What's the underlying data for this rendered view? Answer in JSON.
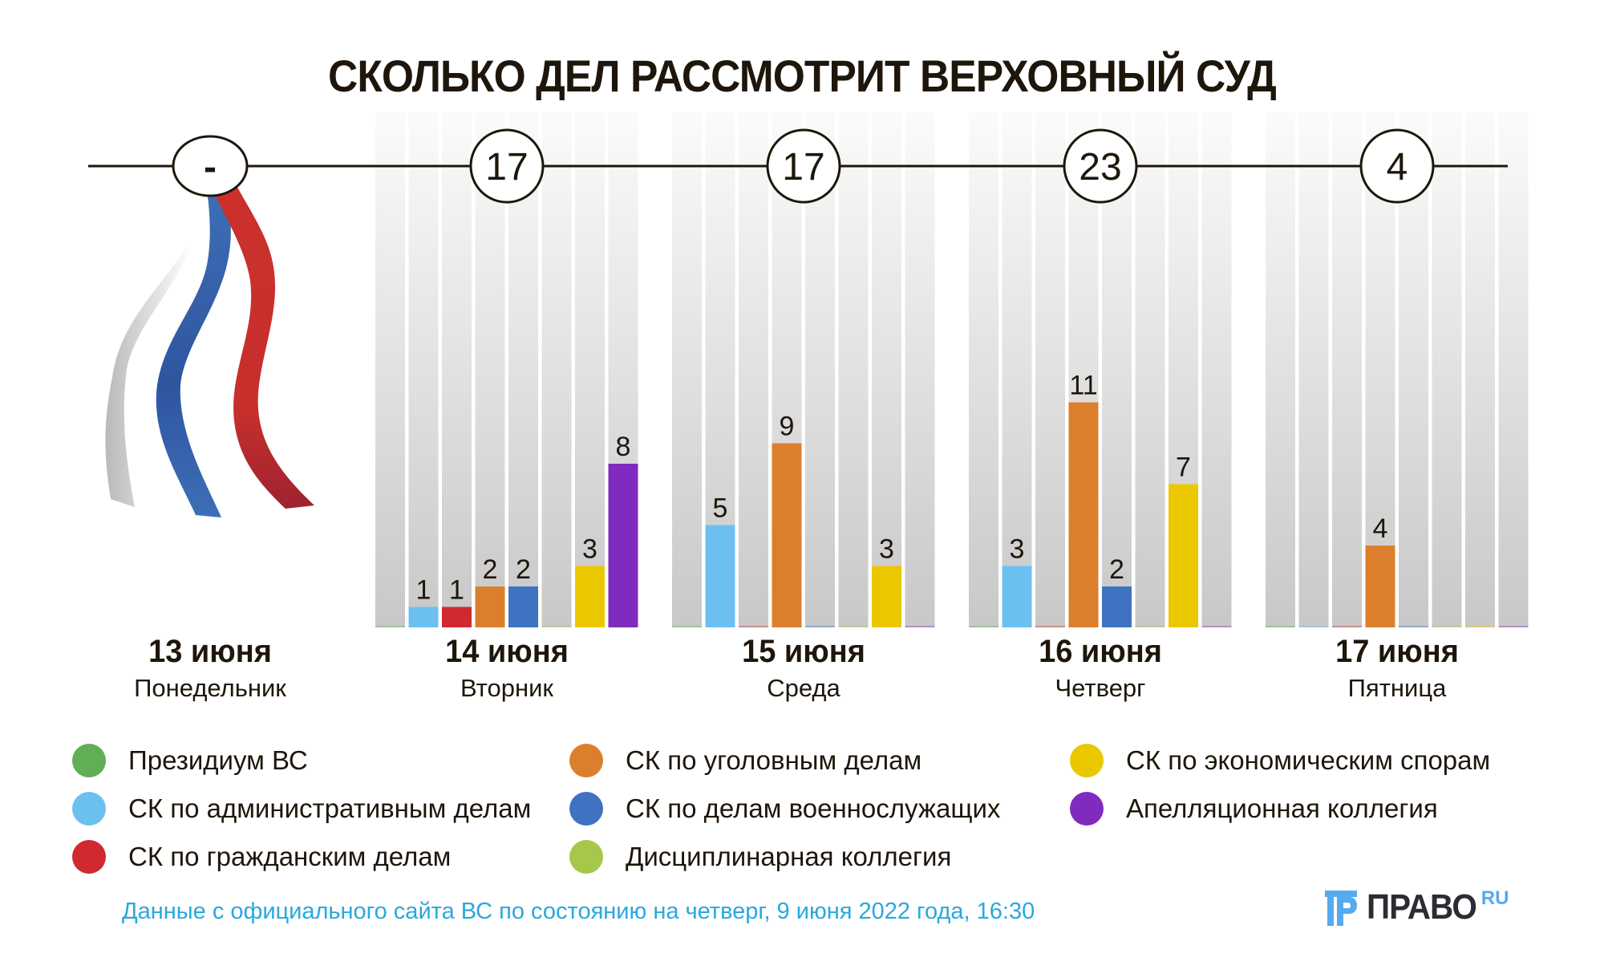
{
  "title": "СКОЛЬКО ДЕЛ РАССМОТРИТ ВЕРХОВНЫЙ СУД",
  "days": [
    {
      "date": "13 июня",
      "weekday": "Понедельник",
      "total": "-"
    },
    {
      "date": "14 июня",
      "weekday": "Вторник",
      "total": "17"
    },
    {
      "date": "15 июня",
      "weekday": "Среда",
      "total": "17"
    },
    {
      "date": "16 июня",
      "weekday": "Четверг",
      "total": "23"
    },
    {
      "date": "17 июня",
      "weekday": "Пятница",
      "total": "4"
    }
  ],
  "legend": [
    {
      "label": "Президиум ВС",
      "color": "#62ae57"
    },
    {
      "label": "СК по административным делам",
      "color": "#6cc0f0"
    },
    {
      "label": "СК по гражданским делам",
      "color": "#d0292f"
    },
    {
      "label": "СК по уголовным делам",
      "color": "#dc7f2d"
    },
    {
      "label": "СК по делам военнослужащих",
      "color": "#3f72c0"
    },
    {
      "label": "Дисциплинарная коллегия",
      "color": "#a6c84a"
    },
    {
      "label": "СК по экономическим спорам",
      "color": "#ebc700"
    },
    {
      "label": "Апелляционная коллегия",
      "color": "#7f2bbf"
    }
  ],
  "footer_note": "Данные с официального сайта ВС по состоянию на четверг, 9 июня 2022 года, 16:30",
  "logo": {
    "text": "ПРАВО",
    "suffix": "RU"
  },
  "chart_data": {
    "type": "bar",
    "title": "СКОЛЬКО ДЕЛ РАССМОТРИТ ВЕРХОВНЫЙ СУД",
    "xlabel": "",
    "ylabel": "",
    "ylim": [
      0,
      18
    ],
    "grid": false,
    "legend_position": "bottom",
    "categories": [
      "14 июня",
      "15 июня",
      "16 июня",
      "17 июня"
    ],
    "totals": [
      17,
      17,
      23,
      4
    ],
    "series": [
      {
        "name": "Президиум ВС",
        "values": [
          0,
          0,
          0,
          0
        ]
      },
      {
        "name": "СК по административным делам",
        "values": [
          1,
          5,
          3,
          0
        ]
      },
      {
        "name": "СК по гражданским делам",
        "values": [
          1,
          0,
          0,
          0
        ]
      },
      {
        "name": "СК по уголовным делам",
        "values": [
          2,
          9,
          11,
          4
        ]
      },
      {
        "name": "СК по делам военнослужащих",
        "values": [
          2,
          0,
          2,
          0
        ]
      },
      {
        "name": "Дисциплинарная коллегия",
        "values": [
          0,
          0,
          0,
          0
        ]
      },
      {
        "name": "СК по экономическим спорам",
        "values": [
          3,
          3,
          7,
          0
        ]
      },
      {
        "name": "Апелляционная коллегия",
        "values": [
          8,
          0,
          0,
          0
        ]
      }
    ],
    "no_data_category": {
      "date": "13 июня",
      "weekday": "Понедельник",
      "total": "-"
    }
  }
}
